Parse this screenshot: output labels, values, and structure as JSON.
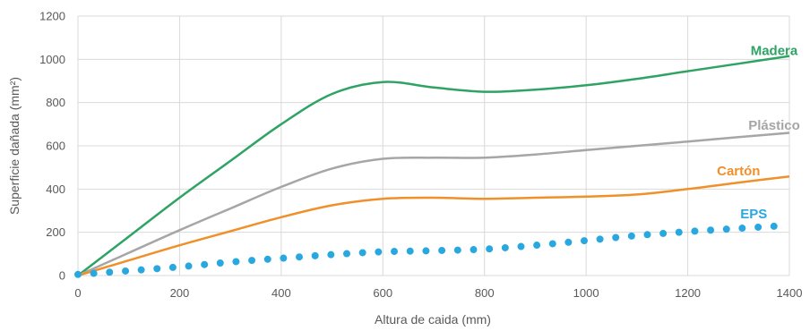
{
  "chart_data": {
    "type": "line",
    "xlabel": "Altura de caida (mm)",
    "ylabel": "Superficie dañada (mm²)",
    "xlim": [
      0,
      1400
    ],
    "ylim": [
      0,
      1200
    ],
    "x_ticks": [
      "0",
      "200",
      "400",
      "600",
      "800",
      "1000",
      "1200",
      "1400"
    ],
    "y_ticks": [
      "0",
      "200",
      "400",
      "600",
      "800",
      "1000",
      "1200"
    ],
    "grid": true,
    "series": [
      {
        "name": "Madera",
        "color": "#2ea364",
        "style": "solid",
        "x": [
          0,
          100,
          200,
          300,
          400,
          500,
          600,
          700,
          800,
          900,
          1000,
          1100,
          1200,
          1300,
          1400
        ],
        "values": [
          0,
          180,
          360,
          530,
          700,
          840,
          895,
          870,
          850,
          860,
          880,
          910,
          945,
          980,
          1015
        ]
      },
      {
        "name": "Plástico",
        "color": "#a6a6a6",
        "style": "solid",
        "x": [
          0,
          100,
          200,
          300,
          400,
          500,
          600,
          700,
          800,
          900,
          1000,
          1100,
          1200,
          1300,
          1400
        ],
        "values": [
          0,
          105,
          210,
          310,
          410,
          495,
          540,
          545,
          545,
          560,
          580,
          600,
          620,
          640,
          660
        ]
      },
      {
        "name": "Cartón",
        "color": "#f0902a",
        "style": "solid",
        "x": [
          0,
          100,
          200,
          300,
          400,
          500,
          600,
          700,
          800,
          900,
          1000,
          1100,
          1200,
          1300,
          1400
        ],
        "values": [
          0,
          70,
          140,
          205,
          270,
          325,
          355,
          360,
          355,
          360,
          365,
          375,
          400,
          430,
          458
        ]
      },
      {
        "name": "EPS",
        "color": "#29a8e0",
        "style": "dotted",
        "x": [
          0,
          100,
          200,
          300,
          400,
          500,
          600,
          700,
          800,
          900,
          1000,
          1100,
          1200,
          1300,
          1400
        ],
        "values": [
          5,
          22,
          40,
          62,
          80,
          97,
          110,
          115,
          122,
          140,
          162,
          185,
          203,
          218,
          232
        ]
      }
    ],
    "series_label_positions": [
      {
        "name": "Madera",
        "anchor_x": 1370,
        "anchor_y": 1040
      },
      {
        "name": "Plástico",
        "anchor_x": 1370,
        "anchor_y": 695
      },
      {
        "name": "Cartón",
        "anchor_x": 1300,
        "anchor_y": 485
      },
      {
        "name": "EPS",
        "anchor_x": 1330,
        "anchor_y": 285
      }
    ]
  }
}
